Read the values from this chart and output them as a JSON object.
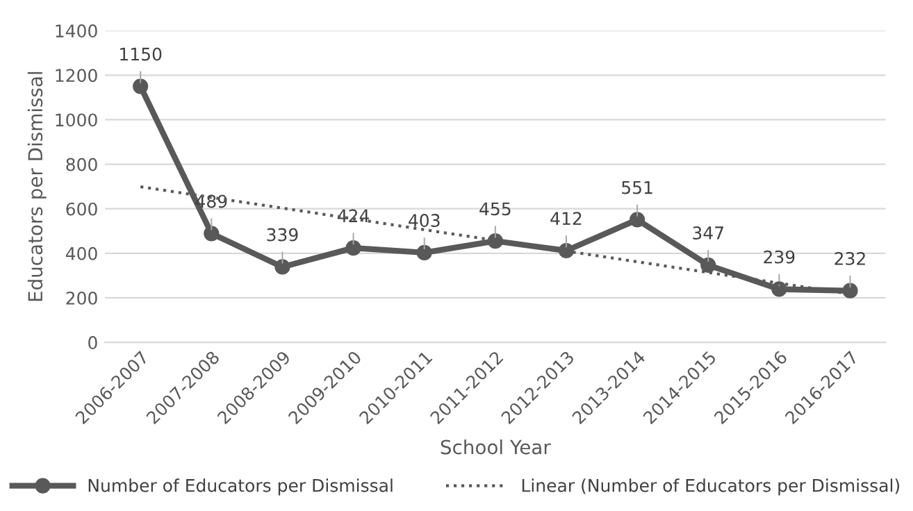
{
  "chart_data": {
    "type": "line",
    "xlabel": "School Year",
    "ylabel": "Educators per Dismissal",
    "categories": [
      "2006-2007",
      "2007-2008",
      "2008-2009",
      "2009-2010",
      "2010-2011",
      "2011-2012",
      "2012-2013",
      "2013-2014",
      "2014-2015",
      "2015-2016",
      "2016-2017"
    ],
    "series": [
      {
        "name": "Number of Educators per Dismissal",
        "color": "#595959",
        "marker": "circle",
        "line_style": "solid",
        "data_labels": true,
        "values": [
          1150,
          489,
          339,
          424,
          403,
          455,
          412,
          551,
          347,
          239,
          232
        ]
      },
      {
        "name": "Linear (Number of Educators per Dismissal)",
        "color": "#595959",
        "marker": "none",
        "line_style": "dotted",
        "values": [
          699,
          651,
          603,
          555,
          506,
          458,
          410,
          362,
          314,
          266,
          217
        ]
      }
    ],
    "ylim": [
      0,
      1400
    ],
    "yticks": [
      0,
      200,
      400,
      600,
      800,
      1000,
      1200,
      1400
    ],
    "grid": "y",
    "legend": "bottom"
  }
}
